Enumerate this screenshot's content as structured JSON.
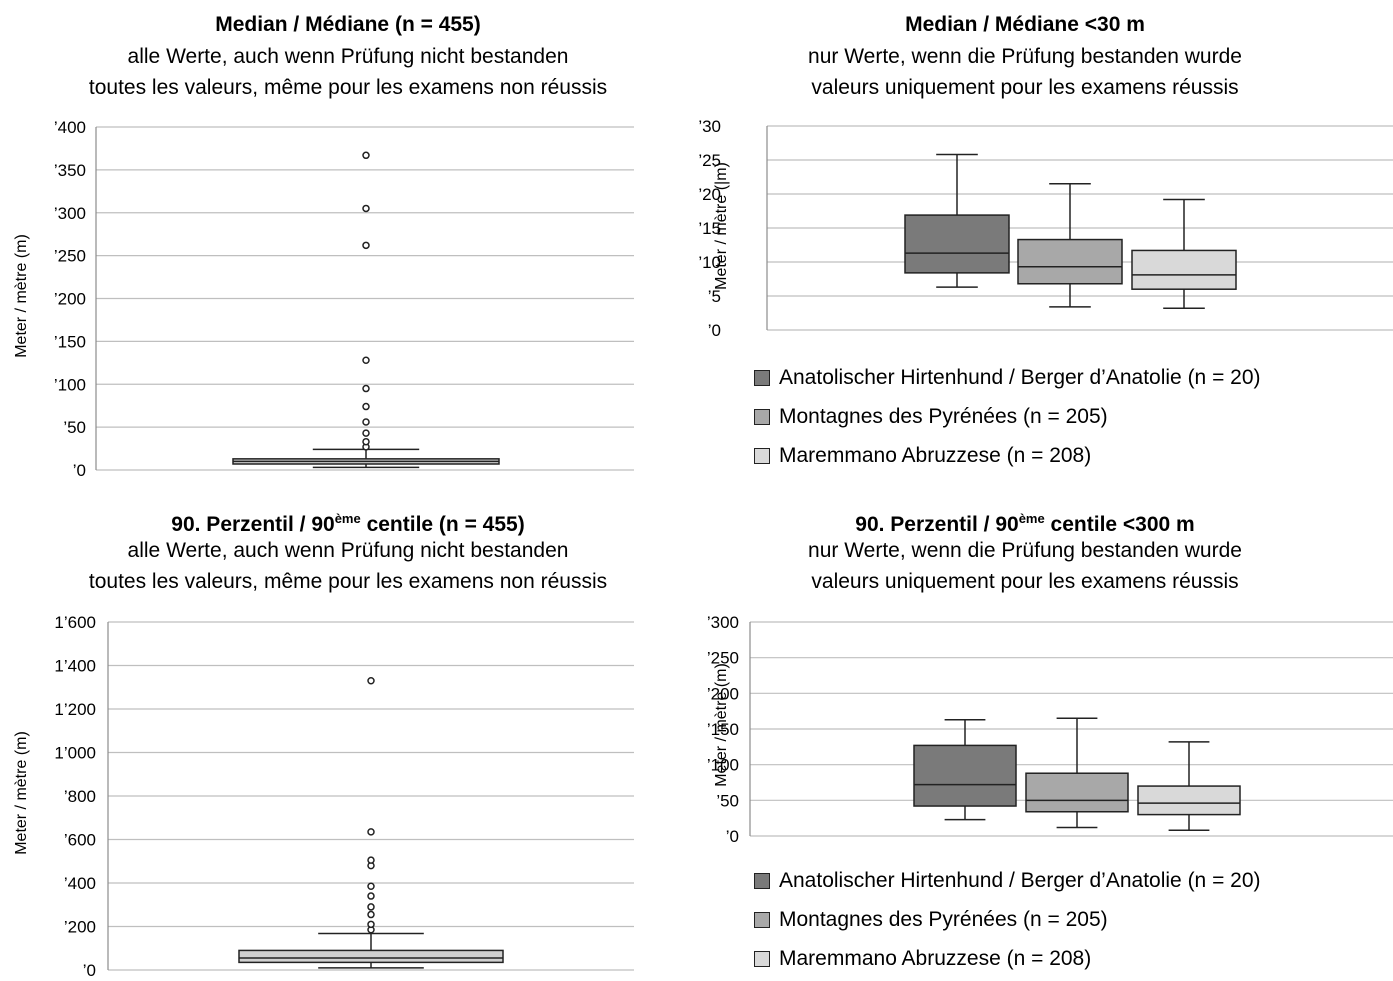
{
  "colors": {
    "anatolian": "#7a7a7a",
    "pyrenees": "#a8a8a8",
    "maremmano": "#d9d9d9",
    "overall": "#cfcfcf",
    "grid": "#bfbfbf",
    "axis": "#8c8c8c"
  },
  "chart_data": [
    {
      "type": "box",
      "title": "Median / Médiane (n = 455)",
      "subtitle_de": "alle Werte, auch wenn Prüfung nicht bestanden",
      "subtitle_fr": "toutes les valeurs, même pour les examens non réussis",
      "ylabel": "Meter / mètre (m)",
      "ylim": [
        0,
        400
      ],
      "yticks": [
        0,
        50,
        100,
        150,
        200,
        250,
        300,
        350,
        400
      ],
      "ytick_labels": [
        "’0",
        "’50",
        "’100",
        "’150",
        "’200",
        "’250",
        "’300",
        "’350",
        "’400"
      ],
      "grid": true,
      "series": [
        {
          "color": "overall",
          "min": 3,
          "q1": 7,
          "median": 10,
          "q3": 13,
          "max": 24,
          "outliers": [
            27,
            33,
            43,
            56,
            74,
            95,
            128,
            262,
            305,
            367
          ]
        }
      ]
    },
    {
      "type": "box",
      "title": "Median / Médiane <30 m",
      "subtitle_de": "nur Werte, wenn die Prüfung bestanden wurde",
      "subtitle_fr": "valeurs uniquement pour les examens réussis",
      "ylabel": "Meter / mètre (|m)",
      "ylim": [
        0,
        30
      ],
      "yticks": [
        0,
        5,
        10,
        15,
        20,
        25,
        30
      ],
      "ytick_labels": [
        "’0",
        "’5",
        "’10",
        "’15",
        "’20",
        "’25",
        "’30"
      ],
      "grid": true,
      "legend": [
        "Anatolischer Hirtenhund / Berger d’Anatolie (n = 20)",
        "Montagnes des Pyrénées (n = 205)",
        "Maremmano Abruzzese (n = 208)"
      ],
      "series": [
        {
          "name": "Anatolischer Hirtenhund / Berger d’Anatolie (n = 20)",
          "color": "anatolian",
          "min": 6.3,
          "q1": 8.4,
          "median": 11.3,
          "q3": 16.9,
          "max": 25.8,
          "outliers": []
        },
        {
          "name": "Montagnes des Pyrénées (n = 205)",
          "color": "pyrenees",
          "min": 3.4,
          "q1": 6.8,
          "median": 9.3,
          "q3": 13.3,
          "max": 21.5,
          "outliers": []
        },
        {
          "name": "Maremmano Abruzzese (n = 208)",
          "color": "maremmano",
          "min": 3.2,
          "q1": 6.0,
          "median": 8.1,
          "q3": 11.7,
          "max": 19.2,
          "outliers": []
        }
      ]
    },
    {
      "type": "box",
      "title_main": "90. Perzentil / 90",
      "title_sup": "ème",
      "title_rest": " centile (n = 455)",
      "subtitle_de": "alle Werte, auch wenn Prüfung nicht bestanden",
      "subtitle_fr": "toutes les valeurs, même pour les examens non réussis",
      "ylabel": "Meter / mètre (m)",
      "ylim": [
        0,
        1600
      ],
      "yticks": [
        0,
        200,
        400,
        600,
        800,
        1000,
        1200,
        1400,
        1600
      ],
      "ytick_labels": [
        "’0",
        "’200",
        "’400",
        "’600",
        "’800",
        "1’000",
        "1’200",
        "1’400",
        "1’600"
      ],
      "grid": true,
      "series": [
        {
          "color": "overall",
          "min": 10,
          "q1": 35,
          "median": 55,
          "q3": 90,
          "max": 168,
          "outliers": [
            185,
            210,
            255,
            290,
            340,
            385,
            480,
            505,
            635,
            1330
          ]
        }
      ]
    },
    {
      "type": "box",
      "title_main": "90. Perzentil / 90",
      "title_sup": "ème",
      "title_rest": " centile <300 m",
      "subtitle_de": "nur Werte, wenn die Prüfung bestanden wurde",
      "subtitle_fr": "valeurs uniquement pour les examens réussis",
      "ylabel": "Meter / mètre (m)",
      "ylim": [
        0,
        300
      ],
      "yticks": [
        0,
        50,
        100,
        150,
        200,
        250,
        300
      ],
      "ytick_labels": [
        "’0",
        "’50",
        "’100",
        "’150",
        "’200",
        "’250",
        "’300"
      ],
      "grid": true,
      "legend": [
        "Anatolischer Hirtenhund / Berger d’Anatolie (n = 20)",
        "Montagnes des Pyrénées (n = 205)",
        "Maremmano Abruzzese (n = 208)"
      ],
      "series": [
        {
          "name": "Anatolischer Hirtenhund / Berger d’Anatolie (n = 20)",
          "color": "anatolian",
          "min": 23,
          "q1": 42,
          "median": 72,
          "q3": 127,
          "max": 163,
          "outliers": []
        },
        {
          "name": "Montagnes des Pyrénées (n = 205)",
          "color": "pyrenees",
          "min": 12,
          "q1": 34,
          "median": 50,
          "q3": 88,
          "max": 165,
          "outliers": []
        },
        {
          "name": "Maremmano Abruzzese (n = 208)",
          "color": "maremmano",
          "min": 8,
          "q1": 30,
          "median": 46,
          "q3": 70,
          "max": 132,
          "outliers": []
        }
      ]
    }
  ]
}
